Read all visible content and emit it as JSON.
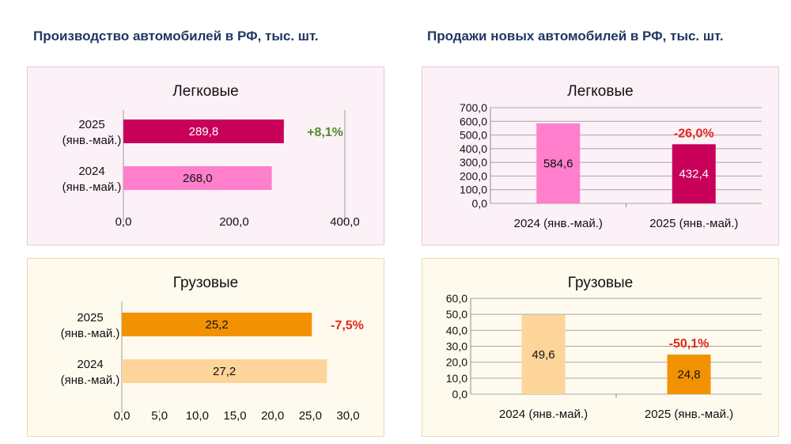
{
  "headings": {
    "production": "Производство автомобилей в РФ, тыс. шт.",
    "sales": "Продажи новых автомобилей в РФ, тыс. шт."
  },
  "colors": {
    "pink_bg": "#fdf1f8",
    "pink_border": "#e8c8dc",
    "beige_bg": "#fefaee",
    "beige_border": "#ecdcb0",
    "magenta": "#c8005a",
    "pink": "#ff7fcc",
    "orange": "#f39200",
    "peach": "#fdd49a",
    "green": "#4f8a2a",
    "red": "#e2261c"
  },
  "chart_data": [
    {
      "type": "bar",
      "orientation": "horizontal",
      "title": "Легковые",
      "categories": [
        [
          "2025",
          "(янв.-май.)"
        ],
        [
          "2024",
          "(янв.-май.)"
        ]
      ],
      "values": [
        289.8,
        268.0
      ],
      "value_labels": [
        "289,8",
        "268,0"
      ],
      "xlim": [
        0,
        400
      ],
      "ticks": [
        "0,0",
        "200,0",
        "400,0"
      ],
      "change_label": "+8,1%"
    },
    {
      "type": "bar",
      "orientation": "horizontal",
      "title": "Грузовые",
      "categories": [
        [
          "2025",
          "(янв.-май.)"
        ],
        [
          "2024",
          "(янв.-май.)"
        ]
      ],
      "values": [
        25.2,
        27.2
      ],
      "value_labels": [
        "25,2",
        "27,2"
      ],
      "xlim": [
        0,
        30
      ],
      "ticks": [
        "0,0",
        "5,0",
        "10,0",
        "15,0",
        "20,0",
        "25,0",
        "30,0"
      ],
      "change_label": "-7,5%"
    },
    {
      "type": "bar",
      "orientation": "vertical",
      "title": "Легковые",
      "categories": [
        "2024 (янв.-май.)",
        "2025 (янв.-май.)"
      ],
      "values": [
        584.6,
        432.4
      ],
      "value_labels": [
        "584,6",
        "432,4"
      ],
      "ylim": [
        0,
        700
      ],
      "ticks": [
        "0,0",
        "100,0",
        "200,0",
        "300,0",
        "400,0",
        "500,0",
        "600,0",
        "700,0"
      ],
      "change_label": "-26,0%",
      "grid": true
    },
    {
      "type": "bar",
      "orientation": "vertical",
      "title": "Грузовые",
      "categories": [
        "2024 (янв.-май.)",
        "2025 (янв.-май.)"
      ],
      "values": [
        49.6,
        24.8
      ],
      "value_labels": [
        "49,6",
        "24,8"
      ],
      "ylim": [
        0,
        60
      ],
      "ticks": [
        "0,0",
        "10,0",
        "20,0",
        "30,0",
        "40,0",
        "50,0",
        "60,0"
      ],
      "change_label": "-50,1%",
      "grid": true
    }
  ]
}
